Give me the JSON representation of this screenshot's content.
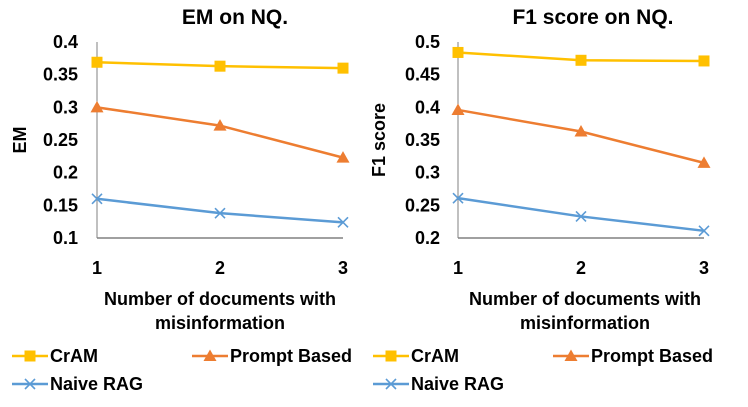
{
  "colors": {
    "cram": "#FFC000",
    "prompt": "#ED7D31",
    "naive": "#5B9BD5",
    "axis": "#808080"
  },
  "legend": [
    {
      "name": "CrAM",
      "color": "#FFC000",
      "marker": "square"
    },
    {
      "name": "Prompt Based",
      "color": "#ED7D31",
      "marker": "triangle"
    },
    {
      "name": "Naive RAG",
      "color": "#5B9BD5",
      "marker": "x"
    }
  ],
  "chart_data": [
    {
      "type": "line",
      "title": "EM on NQ.",
      "xlabel": [
        "Number of documents with",
        "misinformation"
      ],
      "ylabel": "EM",
      "x": [
        1,
        2,
        3
      ],
      "ylim": [
        0.1,
        0.4
      ],
      "yticks": [
        "0.1",
        "0.15",
        "0.2",
        "0.25",
        "0.3",
        "0.35",
        "0.4"
      ],
      "xticks": [
        "1",
        "2",
        "3"
      ],
      "series": [
        {
          "name": "CrAM",
          "values": [
            0.369,
            0.363,
            0.36
          ]
        },
        {
          "name": "Prompt Based",
          "values": [
            0.3,
            0.272,
            0.223
          ]
        },
        {
          "name": "Naive RAG",
          "values": [
            0.16,
            0.138,
            0.124
          ]
        }
      ],
      "grid": false,
      "legend_position": "bottom"
    },
    {
      "type": "line",
      "title": "F1 score on NQ.",
      "xlabel": [
        "Number of documents with",
        "misinformation"
      ],
      "ylabel": "F1 score",
      "x": [
        1,
        2,
        3
      ],
      "ylim": [
        0.2,
        0.5
      ],
      "yticks": [
        "0.2",
        "0.25",
        "0.3",
        "0.35",
        "0.4",
        "0.45",
        "0.5"
      ],
      "xticks": [
        "1",
        "2",
        "3"
      ],
      "series": [
        {
          "name": "CrAM",
          "values": [
            0.484,
            0.472,
            0.471
          ]
        },
        {
          "name": "Prompt Based",
          "values": [
            0.396,
            0.363,
            0.315
          ]
        },
        {
          "name": "Naive RAG",
          "values": [
            0.261,
            0.233,
            0.211
          ]
        }
      ],
      "grid": false,
      "legend_position": "bottom"
    }
  ]
}
